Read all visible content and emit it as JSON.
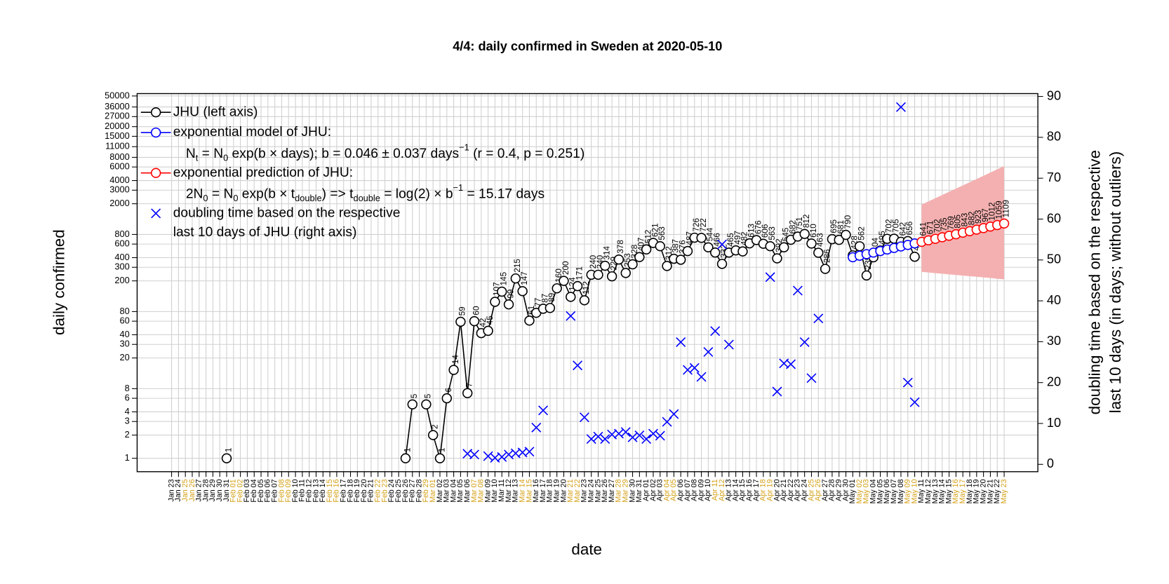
{
  "chart_data": {
    "type": "line",
    "title": "4/4: daily confirmed in Sweden at 2020-05-10",
    "xlabel": "date",
    "ylabel": "daily confirmed",
    "y2label": [
      "doubling time based on the respective",
      "last 10 days (in days; without outliers)"
    ],
    "ylog": true,
    "grid": true,
    "weekend_label_color": "#d4a017",
    "ylim": [
      0.67,
      53700
    ],
    "yticks": [
      1,
      2,
      3,
      4,
      6,
      8,
      20,
      30,
      40,
      60,
      80,
      200,
      300,
      400,
      600,
      800,
      2000,
      3000,
      4000,
      6000,
      8000,
      11000,
      15000,
      20000,
      27000,
      36000,
      50000
    ],
    "y2lim": [
      -1.8,
      90.7
    ],
    "y2ticks": [
      0,
      10,
      20,
      30,
      40,
      50,
      60,
      70,
      80,
      90
    ],
    "legend": "top-left",
    "categories": [
      "Jan 23",
      "Jan 24",
      "Jan 25",
      "Jan 26",
      "Jan 27",
      "Jan 28",
      "Jan 29",
      "Jan 30",
      "Jan 31",
      "Feb 01",
      "Feb 02",
      "Feb 03",
      "Feb 04",
      "Feb 05",
      "Feb 06",
      "Feb 07",
      "Feb 08",
      "Feb 09",
      "Feb 10",
      "Feb 11",
      "Feb 12",
      "Feb 13",
      "Feb 14",
      "Feb 15",
      "Feb 16",
      "Feb 17",
      "Feb 18",
      "Feb 19",
      "Feb 20",
      "Feb 21",
      "Feb 22",
      "Feb 23",
      "Feb 24",
      "Feb 25",
      "Feb 26",
      "Feb 27",
      "Feb 28",
      "Feb 29",
      "Mar 01",
      "Mar 02",
      "Mar 03",
      "Mar 04",
      "Mar 05",
      "Mar 06",
      "Mar 07",
      "Mar 08",
      "Mar 09",
      "Mar 10",
      "Mar 11",
      "Mar 12",
      "Mar 13",
      "Mar 14",
      "Mar 15",
      "Mar 16",
      "Mar 17",
      "Mar 18",
      "Mar 19",
      "Mar 20",
      "Mar 21",
      "Mar 22",
      "Mar 23",
      "Mar 24",
      "Mar 25",
      "Mar 26",
      "Mar 27",
      "Mar 28",
      "Mar 29",
      "Mar 30",
      "Mar 31",
      "Apr 01",
      "Apr 02",
      "Apr 03",
      "Apr 04",
      "Apr 05",
      "Apr 06",
      "Apr 07",
      "Apr 08",
      "Apr 09",
      "Apr 10",
      "Apr 11",
      "Apr 12",
      "Apr 13",
      "Apr 14",
      "Apr 15",
      "Apr 16",
      "Apr 17",
      "Apr 18",
      "Apr 19",
      "Apr 20",
      "Apr 21",
      "Apr 22",
      "Apr 23",
      "Apr 24",
      "Apr 25",
      "Apr 26",
      "Apr 27",
      "Apr 28",
      "Apr 29",
      "Apr 30",
      "May 01",
      "May 02",
      "May 03",
      "May 04",
      "May 05",
      "May 06",
      "May 07",
      "May 08",
      "May 09",
      "May 10",
      "May 11",
      "May 12",
      "May 13",
      "May 14",
      "May 15",
      "May 16",
      "May 17",
      "May 18",
      "May 19",
      "May 20",
      "May 21",
      "May 22",
      "May 23"
    ],
    "series": [
      {
        "name": "JHU (left axis)",
        "color": "#000000",
        "marker": "circle",
        "line": true,
        "labels": true,
        "axis": "y",
        "values": [
          null,
          null,
          null,
          null,
          null,
          null,
          null,
          null,
          1,
          null,
          null,
          null,
          null,
          null,
          null,
          null,
          null,
          null,
          null,
          null,
          null,
          null,
          null,
          null,
          null,
          null,
          null,
          null,
          null,
          null,
          null,
          null,
          null,
          null,
          1,
          5,
          null,
          5,
          2,
          1,
          6,
          14,
          59,
          7,
          60,
          42,
          45,
          107,
          145,
          99,
          215,
          147,
          61,
          77,
          87,
          89,
          160,
          200,
          124,
          171,
          112,
          240,
          240,
          314,
          229,
          378,
          253,
          328,
          407,
          512,
          621,
          563,
          312,
          387,
          376,
          487,
          726,
          722,
          544,
          466,
          332,
          465,
          497,
          482,
          613,
          676,
          606,
          563,
          392,
          545,
          682,
          751,
          812,
          610,
          463,
          286,
          695,
          681,
          790,
          428,
          562,
          235,
          404,
          495,
          702,
          705,
          642,
          656,
          411,
          null,
          null,
          null,
          null,
          null,
          null,
          null,
          null,
          null,
          null,
          null,
          null,
          null
        ]
      },
      {
        "name": "exponential model of JHU:",
        "color": "#0000ff",
        "marker": "circle",
        "line": true,
        "labels": false,
        "axis": "y",
        "formula": [
          {
            "text": "N"
          },
          {
            "text": "t",
            "sub": true
          },
          {
            "text": " = N"
          },
          {
            "text": "0",
            "sub": true
          },
          {
            "text": " exp(b × days); b = 0.046 ± 0.037 days"
          },
          {
            "text": "−1",
            "sup": true
          },
          {
            "text": " (r = 0.4, p = 0.251)"
          }
        ],
        "values": [
          null,
          null,
          null,
          null,
          null,
          null,
          null,
          null,
          null,
          null,
          null,
          null,
          null,
          null,
          null,
          null,
          null,
          null,
          null,
          null,
          null,
          null,
          null,
          null,
          null,
          null,
          null,
          null,
          null,
          null,
          null,
          null,
          null,
          null,
          null,
          null,
          null,
          null,
          null,
          null,
          null,
          null,
          null,
          null,
          null,
          null,
          null,
          null,
          null,
          null,
          null,
          null,
          null,
          null,
          null,
          null,
          null,
          null,
          null,
          null,
          null,
          null,
          null,
          null,
          null,
          null,
          null,
          null,
          null,
          null,
          null,
          null,
          null,
          null,
          null,
          null,
          null,
          null,
          null,
          null,
          null,
          null,
          null,
          null,
          null,
          null,
          null,
          null,
          null,
          null,
          null,
          null,
          null,
          null,
          null,
          null,
          null,
          null,
          null,
          405,
          424,
          444,
          465,
          487,
          510,
          534,
          559,
          585,
          612,
          null,
          null,
          null,
          null,
          null,
          null,
          null,
          null,
          null,
          null,
          null,
          null,
          null
        ]
      },
      {
        "name": "exponential prediction of JHU:",
        "color": "#ff0000",
        "marker": "circle",
        "line": true,
        "labels": true,
        "axis": "y",
        "band_color": "#f4b0b0",
        "formula": [
          {
            "text": "2N"
          },
          {
            "text": "0",
            "sub": true
          },
          {
            "text": " = N"
          },
          {
            "text": "0",
            "sub": true
          },
          {
            "text": " exp(b × t"
          },
          {
            "text": "double",
            "sub": true
          },
          {
            "text": ") => t"
          },
          {
            "text": "double",
            "sub": true
          },
          {
            "text": " = log(2) × b"
          },
          {
            "text": "−1",
            "sup": true
          },
          {
            "text": " = 15.17 days"
          }
        ],
        "values": [
          null,
          null,
          null,
          null,
          null,
          null,
          null,
          null,
          null,
          null,
          null,
          null,
          null,
          null,
          null,
          null,
          null,
          null,
          null,
          null,
          null,
          null,
          null,
          null,
          null,
          null,
          null,
          null,
          null,
          null,
          null,
          null,
          null,
          null,
          null,
          null,
          null,
          null,
          null,
          null,
          null,
          null,
          null,
          null,
          null,
          null,
          null,
          null,
          null,
          null,
          null,
          null,
          null,
          null,
          null,
          null,
          null,
          null,
          null,
          null,
          null,
          null,
          null,
          null,
          null,
          null,
          null,
          null,
          null,
          null,
          null,
          null,
          null,
          null,
          null,
          null,
          null,
          null,
          null,
          null,
          null,
          null,
          null,
          null,
          null,
          null,
          null,
          null,
          null,
          null,
          null,
          null,
          null,
          null,
          null,
          null,
          null,
          null,
          null,
          null,
          null,
          null,
          null,
          null,
          null,
          null,
          null,
          null,
          null,
          641,
          671,
          702,
          735,
          769,
          805,
          843,
          882,
          923,
          967,
          1012,
          1059,
          1109
        ],
        "band_lower": [
          null,
          null,
          null,
          null,
          null,
          null,
          null,
          null,
          null,
          null,
          null,
          null,
          null,
          null,
          null,
          null,
          null,
          null,
          null,
          null,
          null,
          null,
          null,
          null,
          null,
          null,
          null,
          null,
          null,
          null,
          null,
          null,
          null,
          null,
          null,
          null,
          null,
          null,
          null,
          null,
          null,
          null,
          null,
          null,
          null,
          null,
          null,
          null,
          null,
          null,
          null,
          null,
          null,
          null,
          null,
          null,
          null,
          null,
          null,
          null,
          null,
          null,
          null,
          null,
          null,
          null,
          null,
          null,
          null,
          null,
          null,
          null,
          null,
          null,
          null,
          null,
          null,
          null,
          null,
          null,
          null,
          null,
          null,
          null,
          null,
          null,
          null,
          null,
          null,
          null,
          null,
          null,
          null,
          null,
          null,
          null,
          null,
          null,
          null,
          null,
          null,
          null,
          null,
          null,
          null,
          null,
          null,
          null,
          null,
          262,
          257,
          252,
          248,
          243,
          239,
          234,
          230,
          226,
          222,
          218,
          213,
          209
        ],
        "band_upper": [
          null,
          null,
          null,
          null,
          null,
          null,
          null,
          null,
          null,
          null,
          null,
          null,
          null,
          null,
          null,
          null,
          null,
          null,
          null,
          null,
          null,
          null,
          null,
          null,
          null,
          null,
          null,
          null,
          null,
          null,
          null,
          null,
          null,
          null,
          null,
          null,
          null,
          null,
          null,
          null,
          null,
          null,
          null,
          null,
          null,
          null,
          null,
          null,
          null,
          null,
          null,
          null,
          null,
          null,
          null,
          null,
          null,
          null,
          null,
          null,
          null,
          null,
          null,
          null,
          null,
          null,
          null,
          null,
          null,
          null,
          null,
          null,
          null,
          null,
          null,
          null,
          null,
          null,
          null,
          null,
          null,
          null,
          null,
          null,
          null,
          null,
          null,
          null,
          null,
          null,
          null,
          null,
          null,
          null,
          null,
          null,
          null,
          null,
          null,
          null,
          null,
          null,
          null,
          null,
          null,
          null,
          null,
          null,
          null,
          1950,
          2150,
          2360,
          2600,
          2860,
          3150,
          3460,
          3810,
          4190,
          4610,
          5080,
          5590,
          6150
        ]
      },
      {
        "name": [
          "doubling time based on the respective",
          "last 10 days of JHU (right axis)"
        ],
        "color": "#0000ff",
        "marker": "x",
        "line": false,
        "labels": false,
        "axis": "y2",
        "values": [
          null,
          null,
          null,
          null,
          null,
          null,
          null,
          null,
          null,
          null,
          null,
          null,
          null,
          null,
          null,
          null,
          null,
          null,
          null,
          null,
          null,
          null,
          null,
          null,
          null,
          null,
          null,
          null,
          null,
          null,
          null,
          null,
          null,
          null,
          null,
          null,
          null,
          null,
          null,
          null,
          null,
          null,
          null,
          2.6,
          2.4,
          null,
          2,
          1.6,
          1.8,
          2.4,
          2.7,
          2.9,
          3.1,
          9,
          13.2,
          null,
          null,
          null,
          36.3,
          24.2,
          11.5,
          6.2,
          6.8,
          6.2,
          7.3,
          7.5,
          7.9,
          6.6,
          7.1,
          6.2,
          7.5,
          7,
          10.4,
          12.3,
          29.9,
          23.1,
          23.6,
          21.4,
          27.5,
          32.6,
          53.8,
          29.3,
          null,
          null,
          null,
          null,
          null,
          45.8,
          17.8,
          24.7,
          24.5,
          42.5,
          29.9,
          21.1,
          35.7,
          null,
          null,
          null,
          null,
          null,
          null,
          null,
          null,
          null,
          null,
          null,
          87.4,
          20,
          15.2,
          null,
          null,
          null,
          null,
          null,
          null,
          null,
          null,
          null,
          null,
          null,
          null,
          null
        ]
      }
    ]
  }
}
